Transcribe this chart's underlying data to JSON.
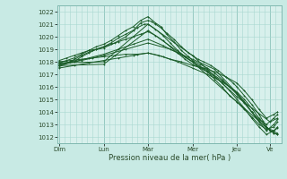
{
  "bg_color": "#c8eae4",
  "plot_bg": "#d8f0ec",
  "grid_color": "#a8d8d0",
  "line_color": "#1a5c28",
  "ylabel_text": "Pression niveau de la mer( hPa )",
  "day_labels": [
    "Dim",
    "Lun",
    "Mar",
    "Mer",
    "Jeu",
    "Ve"
  ],
  "day_positions": [
    0,
    24,
    48,
    72,
    96,
    114
  ],
  "ylim": [
    1011.5,
    1022.5
  ],
  "yticks": [
    1012,
    1013,
    1014,
    1015,
    1016,
    1017,
    1018,
    1019,
    1020,
    1021,
    1022
  ],
  "xlim": [
    -1,
    120
  ],
  "lines": [
    [
      0,
      1017.8,
      3,
      1017.9,
      6,
      1018.0,
      9,
      1018.1,
      12,
      1018.4,
      16,
      1018.7,
      20,
      1019.0,
      24,
      1019.2,
      28,
      1019.5,
      32,
      1019.9,
      36,
      1020.2,
      40,
      1020.5,
      44,
      1021.1,
      48,
      1021.3,
      50,
      1021.2,
      52,
      1021.0,
      55,
      1020.7,
      58,
      1020.3,
      62,
      1019.8,
      66,
      1019.2,
      70,
      1018.7,
      72,
      1018.5,
      75,
      1018.2,
      78,
      1018.0,
      82,
      1017.7,
      86,
      1017.3,
      90,
      1016.8,
      94,
      1016.3,
      96,
      1016.0,
      100,
      1015.3,
      104,
      1014.6,
      108,
      1013.8,
      110,
      1013.3,
      112,
      1012.8,
      114,
      1012.5,
      116,
      1012.3,
      118,
      1012.2
    ],
    [
      0,
      1017.6,
      6,
      1018.0,
      12,
      1018.5,
      18,
      1018.9,
      24,
      1019.1,
      30,
      1019.5,
      36,
      1020.0,
      42,
      1020.7,
      46,
      1021.0,
      48,
      1021.0,
      52,
      1020.6,
      56,
      1020.1,
      60,
      1019.5,
      64,
      1018.9,
      68,
      1018.4,
      72,
      1018.0,
      76,
      1017.6,
      80,
      1017.2,
      84,
      1016.6,
      88,
      1016.0,
      92,
      1015.3,
      96,
      1014.8,
      100,
      1014.2,
      104,
      1013.6,
      108,
      1013.0,
      112,
      1012.6,
      116,
      1012.8,
      118,
      1013.2
    ],
    [
      0,
      1017.9,
      4,
      1018.1,
      8,
      1018.3,
      12,
      1018.6,
      16,
      1018.9,
      20,
      1019.2,
      24,
      1019.4,
      28,
      1019.7,
      32,
      1020.1,
      36,
      1020.5,
      40,
      1020.8,
      44,
      1021.3,
      48,
      1021.6,
      52,
      1021.1,
      55,
      1020.8,
      58,
      1020.2,
      62,
      1019.6,
      66,
      1018.9,
      70,
      1018.4,
      72,
      1018.1,
      76,
      1017.8,
      80,
      1017.5,
      84,
      1017.1,
      88,
      1016.6,
      92,
      1016.0,
      96,
      1015.4,
      100,
      1014.7,
      104,
      1014.0,
      108,
      1013.2,
      112,
      1012.5,
      116,
      1013.0,
      118,
      1013.4
    ],
    [
      0,
      1017.7,
      8,
      1018.0,
      16,
      1018.3,
      24,
      1018.6,
      32,
      1019.0,
      40,
      1019.4,
      48,
      1019.8,
      56,
      1019.3,
      64,
      1018.7,
      72,
      1018.0,
      80,
      1017.3,
      88,
      1016.5,
      96,
      1015.5,
      100,
      1014.8,
      104,
      1014.0,
      108,
      1013.3,
      112,
      1012.7,
      116,
      1012.5,
      118,
      1012.7
    ],
    [
      0,
      1017.5,
      8,
      1017.7,
      16,
      1017.9,
      24,
      1018.1,
      32,
      1018.3,
      40,
      1018.5,
      48,
      1018.7,
      56,
      1018.4,
      64,
      1018.0,
      72,
      1017.5,
      80,
      1017.0,
      88,
      1016.4,
      96,
      1015.6,
      100,
      1015.0,
      104,
      1014.3,
      108,
      1013.5,
      112,
      1012.8,
      116,
      1012.3,
      118,
      1012.2
    ],
    [
      0,
      1018.1,
      4,
      1018.3,
      8,
      1018.5,
      12,
      1018.7,
      16,
      1018.9,
      20,
      1019.0,
      24,
      1019.2,
      28,
      1019.4,
      32,
      1019.6,
      36,
      1019.8,
      40,
      1020.0,
      44,
      1020.2,
      48,
      1020.4,
      52,
      1020.1,
      56,
      1019.7,
      60,
      1019.2,
      64,
      1018.7,
      68,
      1018.2,
      72,
      1017.8,
      76,
      1017.5,
      80,
      1017.2,
      84,
      1016.8,
      88,
      1016.3,
      92,
      1015.7,
      96,
      1015.0,
      100,
      1014.3,
      104,
      1013.5,
      108,
      1012.8,
      112,
      1012.2,
      116,
      1012.5,
      118,
      1012.8
    ],
    [
      0,
      1017.8,
      12,
      1018.1,
      24,
      1018.5,
      36,
      1019.0,
      48,
      1019.5,
      60,
      1019.0,
      72,
      1018.2,
      84,
      1017.4,
      96,
      1015.5,
      100,
      1014.8,
      104,
      1014.0,
      108,
      1013.4,
      112,
      1013.0,
      116,
      1013.5,
      118,
      1013.8
    ],
    [
      0,
      1018.0,
      6,
      1018.1,
      12,
      1018.2,
      18,
      1018.3,
      24,
      1018.4,
      30,
      1018.5,
      36,
      1018.6,
      42,
      1018.6,
      48,
      1018.7,
      54,
      1018.5,
      60,
      1018.2,
      66,
      1018.0,
      72,
      1017.7,
      78,
      1017.5,
      84,
      1017.2,
      90,
      1016.8,
      96,
      1016.3,
      100,
      1015.7,
      104,
      1015.0,
      108,
      1014.2,
      112,
      1013.5,
      116,
      1013.8,
      118,
      1014.0
    ],
    [
      0,
      1017.9,
      24,
      1018.0,
      48,
      1021.0,
      72,
      1018.5,
      96,
      1015.2,
      114,
      1013.2,
      118,
      1013.5
    ],
    [
      0,
      1017.7,
      24,
      1017.8,
      48,
      1020.5,
      72,
      1018.0,
      96,
      1014.8,
      114,
      1012.5,
      118,
      1012.3
    ]
  ]
}
